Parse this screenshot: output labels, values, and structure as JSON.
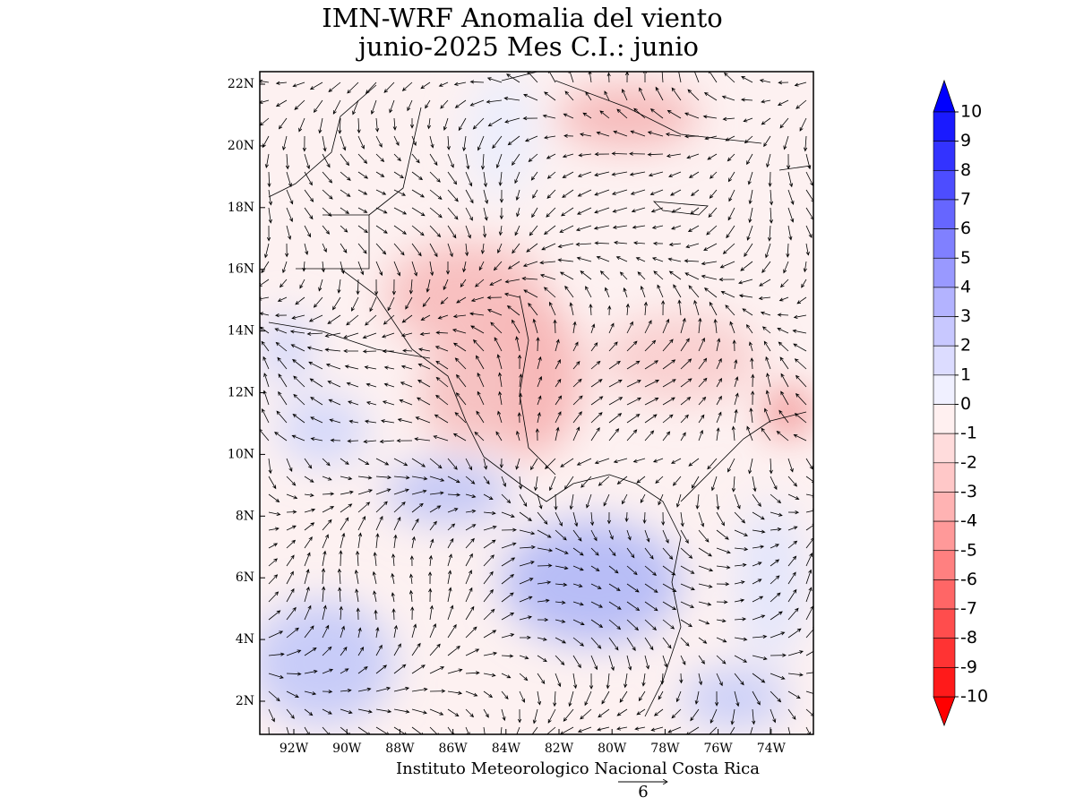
{
  "title": "IMN-WRF Anomalia del viento",
  "subtitle": "junio-2025 Mes C.I.: junio",
  "map": {
    "lat_ticks": [
      "22N",
      "20N",
      "18N",
      "16N",
      "14N",
      "12N",
      "10N",
      "8N",
      "6N",
      "4N",
      "2N"
    ],
    "lon_ticks": [
      "92W",
      "90W",
      "88W",
      "86W",
      "84W",
      "82W",
      "80W",
      "78W",
      "76W",
      "74W"
    ]
  },
  "colorbar": {
    "labels": [
      10,
      9,
      8,
      7,
      6,
      5,
      4,
      3,
      2,
      1,
      0,
      -1,
      -2,
      -3,
      -4,
      -5,
      -6,
      -7,
      -8,
      -9,
      -10
    ],
    "colors": [
      "#1a1aff",
      "#3333ff",
      "#4d4dff",
      "#6666ff",
      "#8080ff",
      "#9999ff",
      "#b3b3ff",
      "#c8c8ff",
      "#dcdcff",
      "#f0f0ff",
      "#fff0f0",
      "#ffdcdc",
      "#ffc8c8",
      "#ffb3b3",
      "#ff9999",
      "#ff8080",
      "#ff6666",
      "#ff4d4d",
      "#ff3333",
      "#ff1a1a"
    ],
    "over_color": "#0000ff",
    "under_color": "#ff0000"
  },
  "footer": "Instituto Meteorologico Nacional Costa Rica",
  "reference_vector": "6"
}
